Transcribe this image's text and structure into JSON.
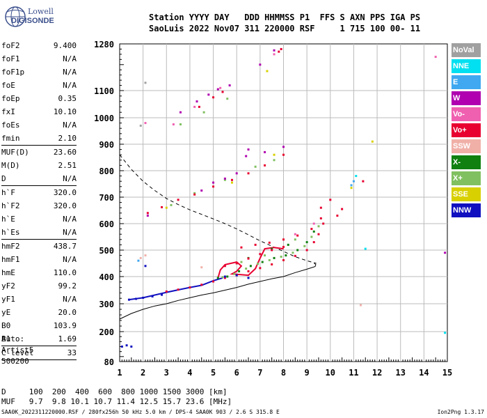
{
  "logo": {
    "line1": "Lowell",
    "line2": "DIGISONDE"
  },
  "header": {
    "line1": "Station YYYY DAY   DDD HHMMSS P1  FFS S AXN PPS IGA PS",
    "line2": "SaoLuis 2022 Nov07 311 220000 RSF     1 715 100 00- 11"
  },
  "params": [
    {
      "k": "foF2",
      "v": "9.400"
    },
    {
      "k": "foF1",
      "v": "N/A"
    },
    {
      "k": "foF1p",
      "v": "N/A"
    },
    {
      "k": "foE",
      "v": "N/A"
    },
    {
      "k": "foEp",
      "v": "0.35"
    },
    {
      "k": "fxI",
      "v": "10.10"
    },
    {
      "k": "foEs",
      "v": "N/A"
    },
    {
      "k": "fmin",
      "v": "2.10"
    },
    {
      "k": "MUF(D)",
      "v": "23.60",
      "sep": true
    },
    {
      "k": "M(D)",
      "v": "2.51"
    },
    {
      "k": "D",
      "v": "N/A"
    },
    {
      "k": "h`F",
      "v": "320.0",
      "sep": true
    },
    {
      "k": "h`F2",
      "v": "320.0"
    },
    {
      "k": "h`E",
      "v": "N/A"
    },
    {
      "k": "h`Es",
      "v": "N/A"
    },
    {
      "k": "hmF2",
      "v": "438.7",
      "sep": true
    },
    {
      "k": "hmF1",
      "v": "N/A"
    },
    {
      "k": "hmE",
      "v": "110.0"
    },
    {
      "k": "yF2",
      "v": "99.2"
    },
    {
      "k": "yF1",
      "v": "N/A"
    },
    {
      "k": "yE",
      "v": "20.0"
    },
    {
      "k": "B0",
      "v": "103.9"
    },
    {
      "k": "B1",
      "v": "1.69"
    },
    {
      "k": "C-level",
      "v": "33",
      "sep": true
    }
  ],
  "auto": {
    "line1": "Auto:",
    "line2": "Artist5",
    "line3": "500200"
  },
  "legend": [
    {
      "label": "NoVal",
      "color": "#a0a0a0"
    },
    {
      "label": "NNE",
      "color": "#00e0f0"
    },
    {
      "label": "E",
      "color": "#40a8f0"
    },
    {
      "label": "W",
      "color": "#b000b0"
    },
    {
      "label": "Vo-",
      "color": "#f060b0"
    },
    {
      "label": "Vo+",
      "color": "#e80030"
    },
    {
      "label": "SSW",
      "color": "#f0b0a8"
    },
    {
      "label": "X-",
      "color": "#108010"
    },
    {
      "label": "X+",
      "color": "#80c060"
    },
    {
      "label": "SSE",
      "color": "#d8d000"
    },
    {
      "label": "NNW",
      "color": "#1010c0"
    }
  ],
  "bottom": {
    "d_row": "D     100  200  400  600  800 1000 1500 3000 [km]",
    "muf_row": "MUF   9.7  9.8 10.1 10.7 11.4 12.5 15.7 23.6 [MHz]"
  },
  "footer": "SAA0K_2022311220000.RSF / 280fx256h 50 kHz 5.0 km / DPS-4 SAA0K 903 / 2.6 S 315.8 E",
  "version": "Ion2Png 1.3.17",
  "chart_data": {
    "type": "scatter",
    "x_ticks": [
      "1",
      "2",
      "3",
      "4",
      "5",
      "6",
      "7",
      "8",
      "9",
      "10",
      "11",
      "12",
      "13",
      "14",
      "15"
    ],
    "y_ticks": [
      "80",
      "200",
      "300",
      "400",
      "500",
      "600",
      "700",
      "800",
      "900",
      "1000",
      "1100",
      "1280"
    ],
    "xlim": [
      1,
      15
    ],
    "ylim": [
      80,
      1280
    ],
    "grid": true,
    "series": [
      {
        "name": "X-",
        "color": "#108010",
        "points": [
          [
            5.2,
            395
          ],
          [
            5.6,
            400
          ],
          [
            6.1,
            420
          ],
          [
            6.6,
            440
          ],
          [
            7.1,
            455
          ],
          [
            7.6,
            470
          ],
          [
            8.1,
            480
          ],
          [
            8.6,
            500
          ],
          [
            9.0,
            530
          ],
          [
            9.3,
            570
          ],
          [
            6.5,
            470
          ],
          [
            7.5,
            505
          ],
          [
            8.2,
            520
          ]
        ]
      },
      {
        "name": "X+",
        "color": "#80c060",
        "points": [
          [
            5.4,
            398
          ],
          [
            5.9,
            410
          ],
          [
            6.4,
            430
          ],
          [
            6.9,
            448
          ],
          [
            7.4,
            462
          ],
          [
            7.9,
            475
          ],
          [
            8.4,
            490
          ],
          [
            8.9,
            515
          ],
          [
            9.2,
            550
          ],
          [
            9.5,
            590
          ],
          [
            6.2,
            455
          ],
          [
            7.2,
            480
          ],
          [
            8.5,
            540
          ],
          [
            3.2,
            670
          ],
          [
            4.2,
            715
          ],
          [
            5.5,
            765
          ],
          [
            6.8,
            815
          ],
          [
            7.6,
            840
          ],
          [
            3.6,
            975
          ],
          [
            4.6,
            1020
          ],
          [
            5.6,
            1070
          ]
        ]
      },
      {
        "name": "Vo+",
        "color": "#e80030",
        "points": [
          [
            3.0,
            345
          ],
          [
            3.5,
            352
          ],
          [
            4.0,
            360
          ],
          [
            4.5,
            370
          ],
          [
            5.0,
            382
          ],
          [
            5.5,
            395
          ],
          [
            6.0,
            405
          ],
          [
            6.5,
            420
          ],
          [
            7.0,
            432
          ],
          [
            7.5,
            446
          ],
          [
            8.0,
            462
          ],
          [
            8.5,
            478
          ],
          [
            9.0,
            500
          ],
          [
            9.3,
            530
          ],
          [
            9.5,
            560
          ],
          [
            9.7,
            600
          ],
          [
            5.5,
            440
          ],
          [
            6.0,
            450
          ],
          [
            6.5,
            468
          ],
          [
            7.0,
            485
          ],
          [
            7.5,
            500
          ],
          [
            8.0,
            512
          ],
          [
            6.2,
            510
          ],
          [
            6.8,
            520
          ],
          [
            7.4,
            528
          ],
          [
            8.0,
            540
          ],
          [
            8.6,
            555
          ],
          [
            9.2,
            580
          ],
          [
            9.6,
            620
          ],
          [
            10.3,
            630
          ],
          [
            10.5,
            655
          ],
          [
            2.2,
            640
          ],
          [
            2.8,
            662
          ],
          [
            3.5,
            690
          ],
          [
            4.2,
            710
          ],
          [
            5.0,
            740
          ],
          [
            5.8,
            765
          ],
          [
            6.5,
            790
          ],
          [
            7.2,
            820
          ],
          [
            8.0,
            860
          ],
          [
            7.8,
            1250
          ],
          [
            7.9,
            1260
          ],
          [
            4.4,
            1040
          ],
          [
            5.0,
            1075
          ],
          [
            5.4,
            1095
          ],
          [
            11.4,
            760
          ],
          [
            9.6,
            660
          ],
          [
            10.0,
            690
          ]
        ]
      },
      {
        "name": "Vo-",
        "color": "#f060b0",
        "points": [
          [
            3.3,
            975
          ],
          [
            4.2,
            1040
          ],
          [
            5.3,
            1110
          ],
          [
            7.6,
            1240
          ],
          [
            2.1,
            980
          ],
          [
            14.5,
            1230
          ],
          [
            8.5,
            560
          ],
          [
            9.3,
            600
          ]
        ]
      },
      {
        "name": "W",
        "color": "#b000b0",
        "points": [
          [
            4.5,
            725
          ],
          [
            5.0,
            755
          ],
          [
            5.5,
            770
          ],
          [
            6.0,
            790
          ],
          [
            6.4,
            855
          ],
          [
            7.2,
            870
          ],
          [
            8.0,
            890
          ],
          [
            6.5,
            880
          ],
          [
            4.3,
            1060
          ],
          [
            4.8,
            1085
          ],
          [
            5.2,
            1105
          ],
          [
            5.7,
            1120
          ],
          [
            3.6,
            1020
          ],
          [
            7.0,
            1200
          ],
          [
            7.6,
            1255
          ],
          [
            14.9,
            490
          ],
          [
            2.2,
            630
          ]
        ]
      },
      {
        "name": "NNW",
        "color": "#1010c0",
        "points": [
          [
            1.4,
            315
          ],
          [
            1.7,
            318
          ],
          [
            2.0,
            322
          ],
          [
            2.4,
            327
          ],
          [
            2.8,
            333
          ],
          [
            1.1,
            140
          ],
          [
            1.3,
            145
          ],
          [
            1.5,
            140
          ],
          [
            2.1,
            440
          ],
          [
            5.5,
            400
          ],
          [
            6.0,
            405
          ],
          [
            6.5,
            395
          ]
        ]
      },
      {
        "name": "SSE",
        "color": "#d8d000",
        "points": [
          [
            3.0,
            660
          ],
          [
            5.8,
            755
          ],
          [
            7.3,
            1175
          ],
          [
            11.8,
            910
          ],
          [
            10.9,
            735
          ],
          [
            7.6,
            860
          ]
        ]
      },
      {
        "name": "NNE",
        "color": "#00e0f0",
        "points": [
          [
            11.1,
            780
          ],
          [
            11.5,
            505
          ],
          [
            14.9,
            195
          ]
        ]
      },
      {
        "name": "E",
        "color": "#40a8f0",
        "points": [
          [
            10.9,
            745
          ],
          [
            11.0,
            760
          ],
          [
            1.8,
            460
          ]
        ]
      },
      {
        "name": "SSW",
        "color": "#f0b0a8",
        "points": [
          [
            11.3,
            295
          ],
          [
            1.9,
            470
          ],
          [
            2.1,
            480
          ],
          [
            4.5,
            435
          ]
        ]
      },
      {
        "name": "NoVal",
        "color": "#a0a0a0",
        "points": [
          [
            2.1,
            1130
          ],
          [
            1.9,
            970
          ]
        ]
      }
    ],
    "curves": [
      {
        "kind": "solid",
        "color": "#000000",
        "points": [
          [
            1.0,
            245
          ],
          [
            1.5,
            265
          ],
          [
            2.0,
            280
          ],
          [
            2.5,
            292
          ],
          [
            3.0,
            300
          ],
          [
            3.5,
            312
          ],
          [
            4.0,
            322
          ],
          [
            4.5,
            332
          ],
          [
            5.0,
            340
          ],
          [
            5.5,
            350
          ],
          [
            6.0,
            360
          ],
          [
            6.5,
            372
          ],
          [
            7.0,
            382
          ],
          [
            7.5,
            392
          ],
          [
            8.0,
            400
          ],
          [
            8.5,
            415
          ],
          [
            9.0,
            428
          ],
          [
            9.35,
            438
          ],
          [
            9.38,
            445
          ],
          [
            9.3,
            452
          ]
        ]
      },
      {
        "kind": "dashed",
        "color": "#000000",
        "points": [
          [
            1.0,
            860
          ],
          [
            1.5,
            805
          ],
          [
            2.0,
            760
          ],
          [
            2.5,
            725
          ],
          [
            3.0,
            695
          ],
          [
            3.5,
            672
          ],
          [
            4.0,
            652
          ],
          [
            4.5,
            635
          ],
          [
            5.0,
            618
          ],
          [
            5.5,
            600
          ],
          [
            6.0,
            580
          ],
          [
            6.5,
            558
          ],
          [
            7.0,
            535
          ],
          [
            7.5,
            515
          ],
          [
            8.0,
            495
          ],
          [
            8.5,
            475
          ],
          [
            9.0,
            460
          ],
          [
            9.4,
            450
          ]
        ]
      },
      {
        "kind": "trace",
        "color": "#1010c0",
        "points": [
          [
            1.4,
            315
          ],
          [
            2.0,
            322
          ],
          [
            3.0,
            342
          ],
          [
            4.0,
            360
          ],
          [
            4.5,
            368
          ],
          [
            5.0,
            385
          ],
          [
            5.4,
            395
          ]
        ]
      },
      {
        "kind": "trace",
        "color": "#e80030",
        "points": [
          [
            5.2,
            395
          ],
          [
            5.3,
            425
          ],
          [
            5.5,
            445
          ],
          [
            6.0,
            455
          ],
          [
            6.2,
            440
          ],
          [
            6.0,
            420
          ],
          [
            5.8,
            410
          ],
          [
            6.5,
            405
          ],
          [
            6.8,
            430
          ],
          [
            7.0,
            470
          ],
          [
            7.2,
            505
          ],
          [
            7.6,
            510
          ],
          [
            8.0,
            505
          ]
        ]
      }
    ]
  }
}
